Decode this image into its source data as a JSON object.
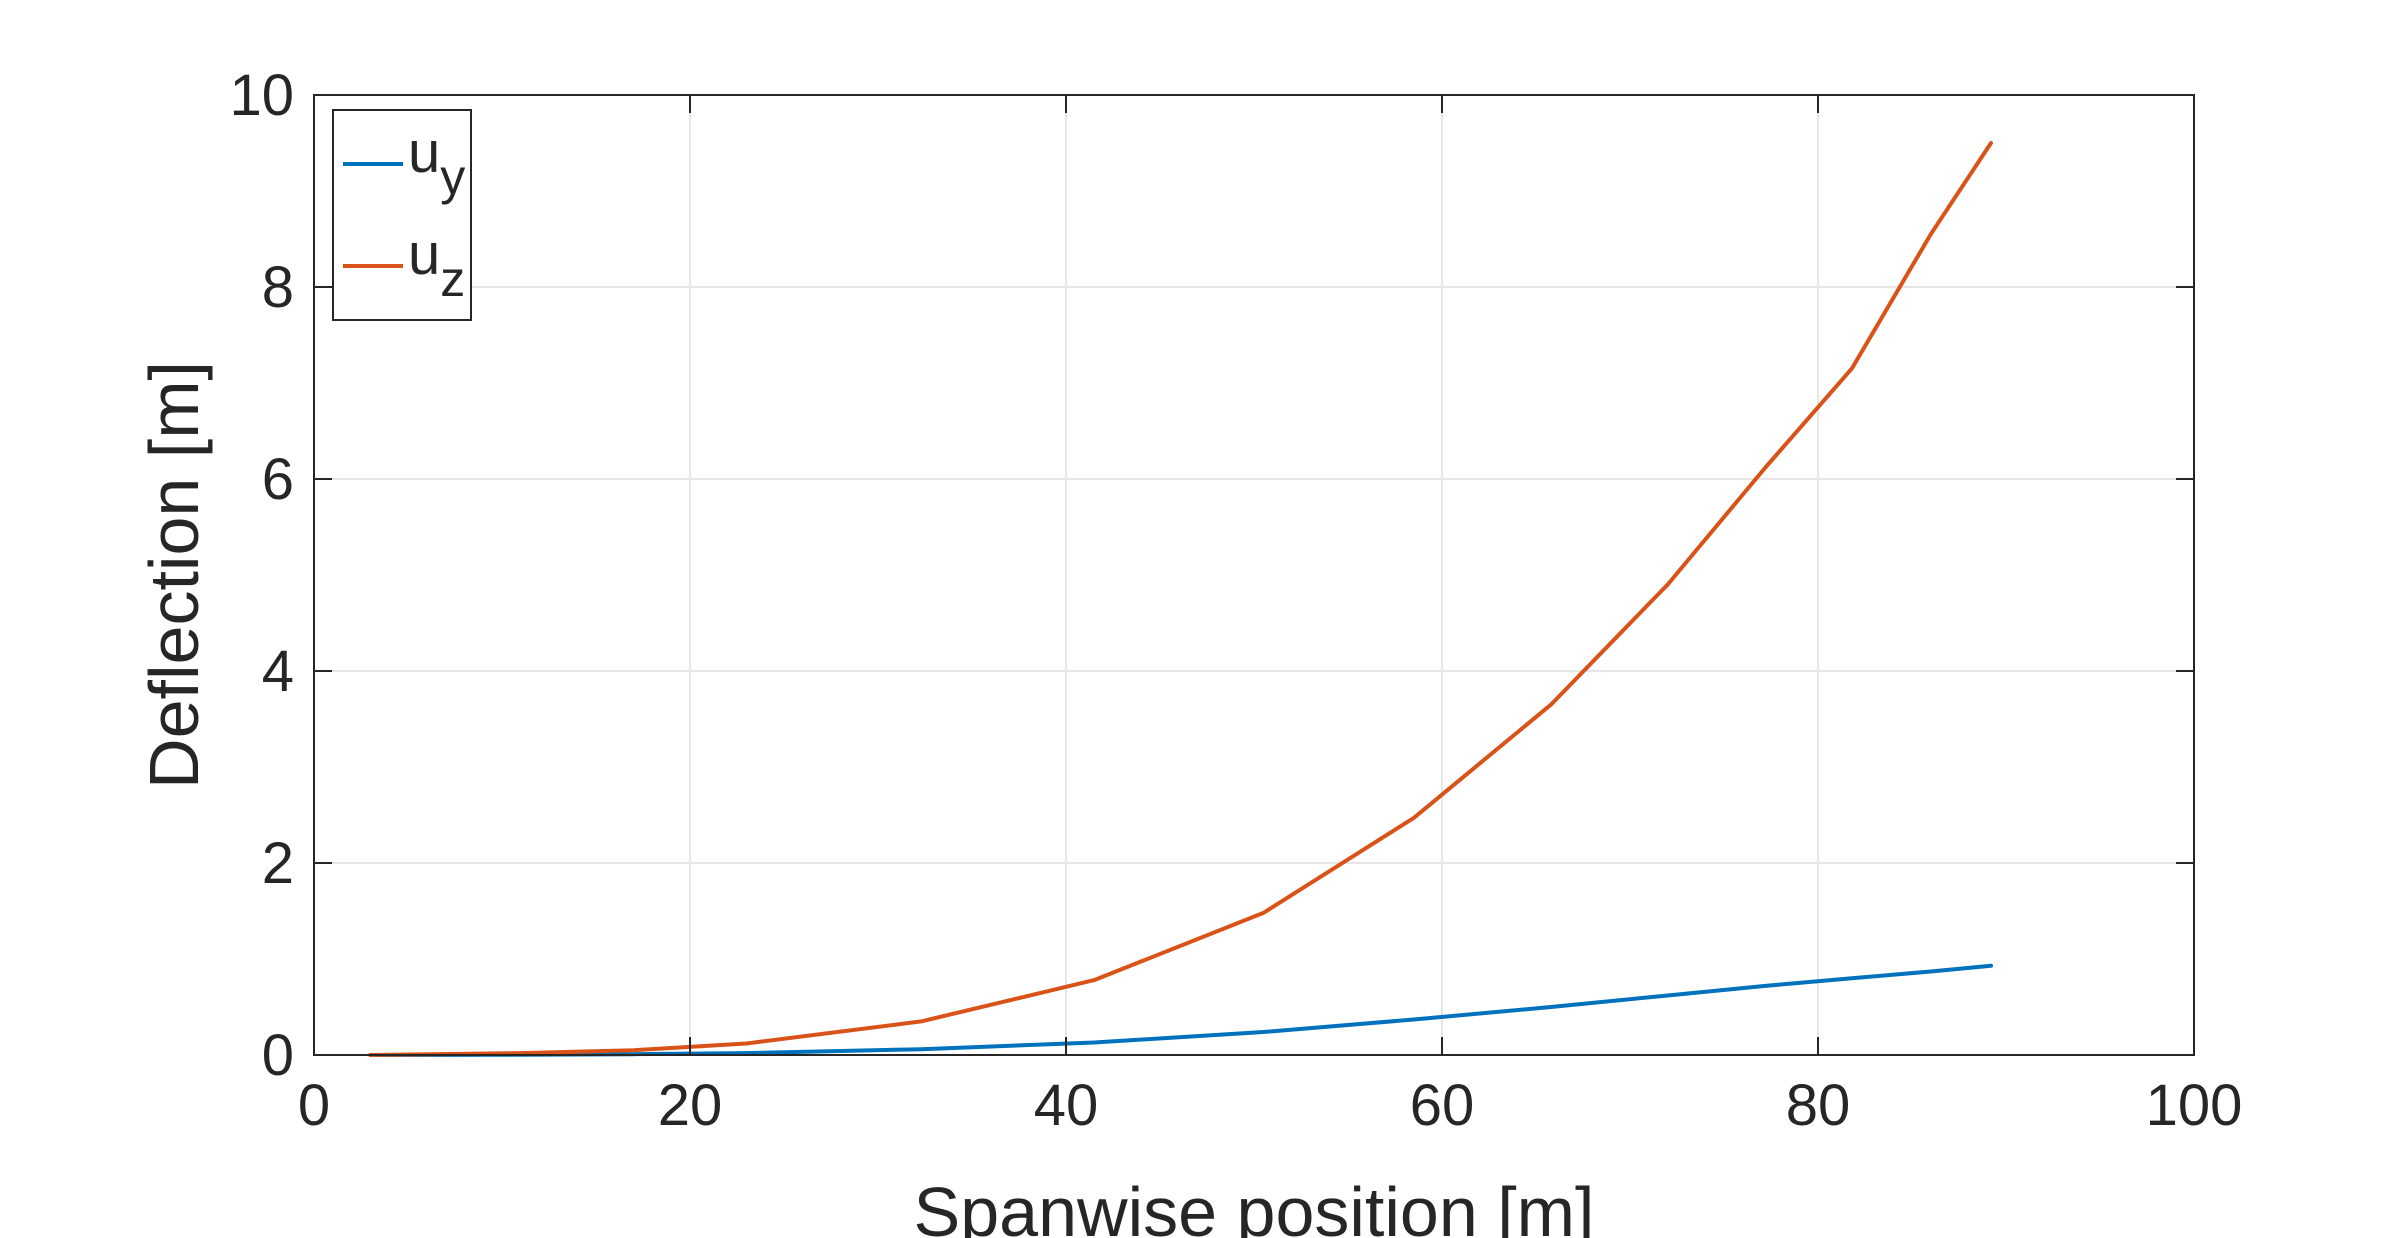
{
  "chart_data": {
    "type": "line",
    "xlabel": "Spanwise position [m]",
    "ylabel": "Deflection [m]",
    "xlim": [
      0,
      100
    ],
    "ylim": [
      0,
      10
    ],
    "xticks": [
      0,
      20,
      40,
      60,
      80,
      100
    ],
    "yticks": [
      0,
      2,
      4,
      6,
      8,
      10
    ],
    "grid": true,
    "legend_position": "top-left",
    "series": [
      {
        "name_main": "u",
        "name_sub": "y",
        "color": "#0072BD",
        "x": [
          3,
          11,
          17,
          23,
          32.3,
          41.5,
          50.5,
          58.5,
          65.8,
          72,
          77.2,
          81.8,
          86,
          89.2
        ],
        "y": [
          0.0,
          0.003,
          0.008,
          0.02,
          0.06,
          0.13,
          0.24,
          0.37,
          0.5,
          0.62,
          0.72,
          0.8,
          0.87,
          0.93
        ]
      },
      {
        "name_main": "u",
        "name_sub": "z",
        "color": "#D95319",
        "x": [
          3,
          11,
          17,
          23,
          32.3,
          41.5,
          50.5,
          58.5,
          65.8,
          72,
          77.2,
          81.8,
          86,
          89.2
        ],
        "y": [
          0.0,
          0.02,
          0.05,
          0.12,
          0.35,
          0.78,
          1.48,
          2.47,
          3.65,
          4.9,
          6.12,
          7.15,
          8.55,
          9.5
        ]
      }
    ]
  }
}
